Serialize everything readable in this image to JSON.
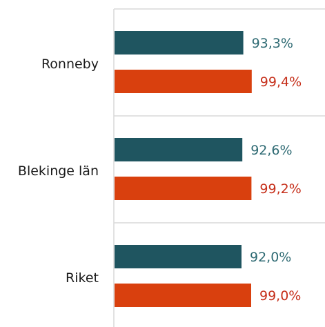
{
  "chart_data": {
    "type": "bar",
    "orientation": "horizontal",
    "categories": [
      "Ronneby",
      "Blekinge län",
      "Riket"
    ],
    "value_labels": [
      [
        "93,3%",
        "99,4%"
      ],
      [
        "92,6%",
        "99,2%"
      ],
      [
        "92,0%",
        "99,0%"
      ]
    ],
    "series": [
      {
        "values": [
          93.3,
          92.6,
          92.0
        ],
        "color": "#1f5560",
        "label_color": "#2e6a73"
      },
      {
        "values": [
          99.4,
          99.2,
          99.0
        ],
        "color": "#d9400e",
        "label_color": "#c62f1a"
      }
    ],
    "xlim": [
      0,
      100
    ],
    "grid": true,
    "legend": "none"
  }
}
